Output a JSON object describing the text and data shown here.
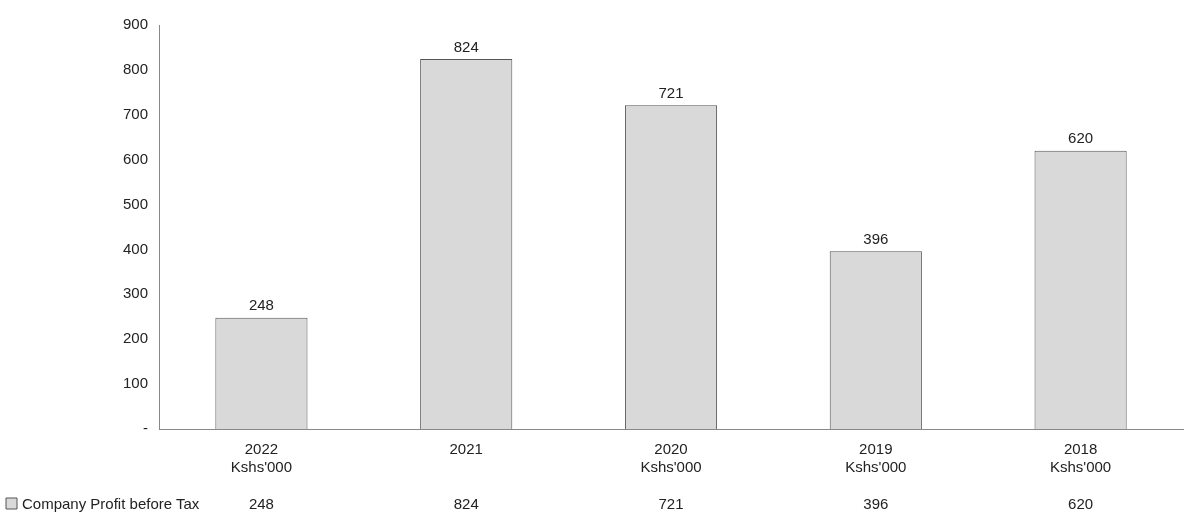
{
  "chart_data": {
    "type": "bar",
    "categories": [
      "2022\nKshs'000",
      "2021",
      "2020\nKshs'000",
      "2019\nKshs'000",
      "2018\nKshs'000"
    ],
    "series": [
      {
        "name": "Company Profit before Tax",
        "color": "#d9d9d9",
        "values": [
          248,
          824,
          721,
          396,
          620
        ]
      }
    ],
    "annotations": [
      "248",
      "824",
      "721",
      "396",
      "620"
    ],
    "ylim": [
      0,
      900
    ],
    "yticks": [
      {
        "value": 0,
        "label": "-"
      },
      100,
      200,
      300,
      400,
      500,
      600,
      700,
      800,
      900
    ],
    "grid": false,
    "data_labels": true,
    "legend": "bottom left"
  }
}
